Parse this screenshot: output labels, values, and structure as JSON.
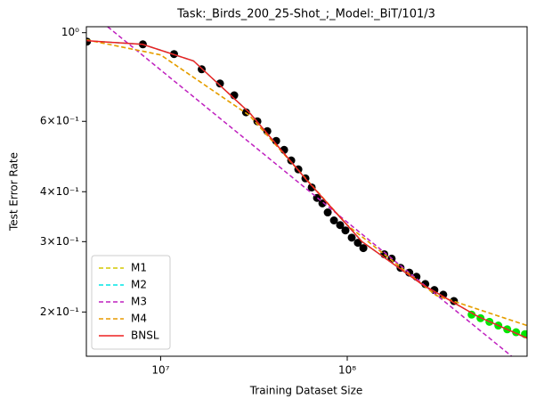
{
  "chart_data": {
    "type": "line",
    "title": "Task:_Birds_200_25-Shot_;_Model:_BiT/101/3",
    "xlabel": "Training Dataset Size",
    "ylabel": "Test Error Rate",
    "xscale": "log",
    "yscale": "log",
    "xlim": [
      4000000,
      920000000
    ],
    "ylim": [
      0.155,
      1.035
    ],
    "xticks": [
      {
        "value": 10000000,
        "label": "10⁷"
      },
      {
        "value": 100000000,
        "label": "10⁸"
      }
    ],
    "yticks": [
      {
        "value": 1,
        "label": "10⁰"
      },
      {
        "value": 0.6,
        "label": "6×10⁻¹"
      },
      {
        "value": 0.4,
        "label": "4×10⁻¹"
      },
      {
        "value": 0.3,
        "label": "3×10⁻¹"
      },
      {
        "value": 0.2,
        "label": "2×10⁻¹"
      }
    ],
    "legend": "lower left",
    "series": [
      {
        "kind": "scatter",
        "color": "#000000",
        "x": [
          4030000,
          8030000,
          11800000,
          16600000,
          20800000,
          24800000,
          28700000,
          33000000,
          37300000,
          41600000,
          45900000,
          50100000,
          54700000,
          59700000,
          64500000,
          68900000,
          73600000,
          78600000,
          84900000,
          91600000,
          97800000,
          105700000,
          114000000,
          122000000,
          158000000,
          173000000,
          193000000,
          215000000,
          235000000,
          262000000,
          293000000,
          327000000,
          373000000
        ],
        "values": [
          0.95,
          0.935,
          0.884,
          0.81,
          0.746,
          0.697,
          0.632,
          0.6,
          0.567,
          0.536,
          0.509,
          0.479,
          0.455,
          0.432,
          0.41,
          0.386,
          0.374,
          0.355,
          0.339,
          0.33,
          0.32,
          0.307,
          0.298,
          0.289,
          0.279,
          0.272,
          0.258,
          0.251,
          0.245,
          0.235,
          0.227,
          0.221,
          0.213
        ]
      },
      {
        "kind": "scatter",
        "color": "#00e600",
        "x": [
          464000000,
          518000000,
          578000000,
          645000000,
          720000000,
          803000000,
          896000000
        ],
        "values": [
          0.197,
          0.193,
          0.189,
          0.185,
          0.181,
          0.178,
          0.176
        ]
      },
      {
        "kind": "line",
        "name": "M1",
        "color": "#d4c800",
        "dash": true,
        "x": [
          4000000,
          10000000,
          30000000,
          100000000,
          300000000,
          920000000
        ],
        "values": [
          0.96,
          0.88,
          0.62,
          0.33,
          0.22,
          0.185
        ]
      },
      {
        "kind": "line",
        "name": "M2",
        "color": "#00e5e5",
        "dash": true,
        "x": [
          4000000,
          8000000,
          15000000,
          30000000,
          60000000,
          120000000,
          250000000,
          500000000,
          920000000
        ],
        "values": [
          0.955,
          0.935,
          0.85,
          0.63,
          0.43,
          0.3,
          0.235,
          0.195,
          0.172
        ]
      },
      {
        "kind": "line",
        "name": "M3",
        "color": "#bf20bf",
        "dash": true,
        "x": [
          5200000,
          760000000
        ],
        "values": [
          1.035,
          0.155
        ]
      },
      {
        "kind": "line",
        "name": "M4",
        "color": "#e89a00",
        "dash": true,
        "x": [
          4000000,
          10000000,
          30000000,
          100000000,
          300000000,
          920000000
        ],
        "values": [
          0.96,
          0.88,
          0.62,
          0.33,
          0.22,
          0.185
        ]
      },
      {
        "kind": "line",
        "name": "BNSL",
        "color": "#ee2020",
        "dash": false,
        "x": [
          4000000,
          8000000,
          15000000,
          30000000,
          60000000,
          120000000,
          250000000,
          500000000,
          920000000
        ],
        "values": [
          0.955,
          0.935,
          0.85,
          0.63,
          0.43,
          0.3,
          0.235,
          0.195,
          0.172
        ]
      }
    ]
  }
}
